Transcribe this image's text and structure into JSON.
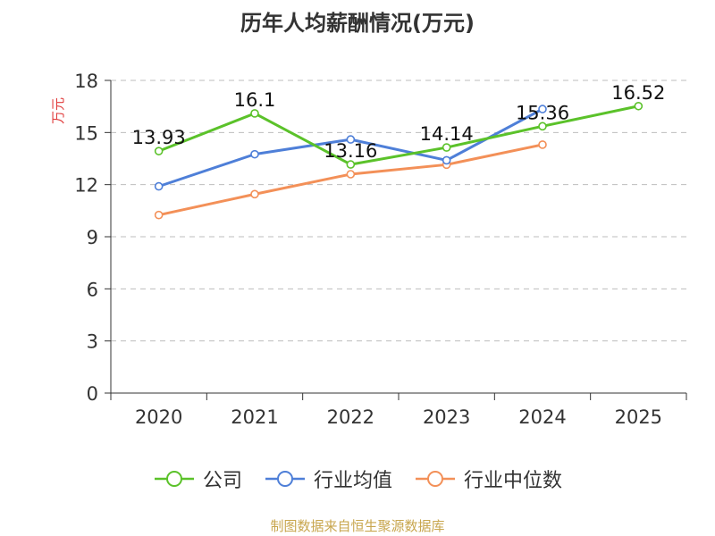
{
  "title": "历年人均薪酬情况(万元)",
  "footer": "制图数据来自恒生聚源数据库",
  "colors": {
    "company": "#5bc22a",
    "avg": "#4e7fd8",
    "median": "#f39058",
    "axis": "#333333",
    "grid": "#bdbdbd",
    "ylabel": "#e03c3c"
  },
  "chart_data": {
    "type": "line",
    "title": "历年人均薪酬情况(万元)",
    "xlabel": "",
    "ylabel": "万元",
    "categories": [
      "2020",
      "2021",
      "2022",
      "2023",
      "2024",
      "2025"
    ],
    "ylim": [
      0,
      18
    ],
    "yticks": [
      0,
      3,
      6,
      9,
      12,
      15,
      18
    ],
    "grid": true,
    "legend_position": "bottom",
    "series": [
      {
        "name": "公司",
        "color": "#5bc22a",
        "values": [
          13.93,
          16.1,
          13.16,
          14.14,
          15.36,
          16.52
        ],
        "labels": [
          "13.93",
          "16.1",
          "13.16",
          "14.14",
          "15.36",
          "16.52"
        ]
      },
      {
        "name": "行业均值",
        "color": "#4e7fd8",
        "values": [
          11.9,
          13.75,
          14.6,
          13.4,
          16.35,
          null
        ]
      },
      {
        "name": "行业中位数",
        "color": "#f39058",
        "values": [
          10.25,
          11.45,
          12.6,
          13.15,
          14.3,
          null
        ]
      }
    ]
  }
}
